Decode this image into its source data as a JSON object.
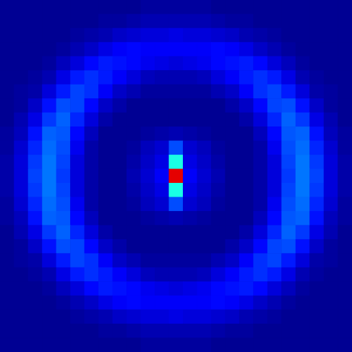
{
  "chart_data": {
    "type": "heatmap",
    "tick_labels": false,
    "zlim": [
      0,
      100
    ],
    "cells": [
      [
        2,
        2,
        2,
        2,
        2,
        2,
        2,
        2,
        2,
        2,
        3,
        3,
        3,
        3,
        3,
        2,
        2,
        2,
        2,
        2,
        2,
        2,
        2,
        2,
        2
      ],
      [
        2,
        2,
        2,
        2,
        2,
        2,
        2,
        3,
        3,
        4,
        5,
        5,
        5,
        5,
        5,
        4,
        3,
        3,
        2,
        2,
        2,
        2,
        2,
        2,
        2
      ],
      [
        2,
        2,
        2,
        2,
        2,
        3,
        4,
        5,
        7,
        8,
        9,
        9,
        10,
        9,
        9,
        8,
        7,
        5,
        4,
        3,
        2,
        2,
        2,
        2,
        2
      ],
      [
        2,
        2,
        2,
        2,
        3,
        5,
        7,
        10,
        12,
        13,
        12,
        12,
        12,
        12,
        12,
        13,
        12,
        10,
        7,
        5,
        3,
        2,
        2,
        2,
        2
      ],
      [
        2,
        2,
        2,
        3,
        6,
        9,
        13,
        15,
        14,
        13,
        11,
        10,
        9,
        10,
        11,
        13,
        14,
        15,
        13,
        9,
        6,
        3,
        2,
        2,
        2
      ],
      [
        2,
        2,
        3,
        5,
        10,
        15,
        17,
        15,
        12,
        9,
        6,
        5,
        5,
        5,
        6,
        9,
        12,
        15,
        17,
        15,
        10,
        5,
        3,
        2,
        2
      ],
      [
        2,
        3,
        4,
        9,
        15,
        19,
        17,
        12,
        7,
        5,
        3,
        3,
        3,
        3,
        3,
        5,
        7,
        12,
        17,
        19,
        15,
        9,
        4,
        3,
        2
      ],
      [
        2,
        3,
        7,
        14,
        20,
        19,
        13,
        7,
        4,
        2,
        2,
        2,
        2,
        2,
        2,
        2,
        4,
        7,
        13,
        19,
        20,
        14,
        7,
        3,
        2
      ],
      [
        2,
        5,
        10,
        18,
        22,
        16,
        9,
        4,
        2,
        2,
        2,
        2,
        2,
        2,
        2,
        2,
        2,
        4,
        9,
        16,
        22,
        18,
        10,
        5,
        2
      ],
      [
        3,
        6,
        14,
        22,
        21,
        13,
        6,
        2,
        2,
        2,
        3,
        4,
        5,
        4,
        3,
        2,
        2,
        2,
        6,
        13,
        21,
        22,
        14,
        6,
        3
      ],
      [
        3,
        8,
        16,
        23,
        20,
        11,
        4,
        2,
        2,
        3,
        6,
        8,
        20,
        8,
        6,
        3,
        2,
        2,
        4,
        11,
        20,
        23,
        16,
        8,
        3
      ],
      [
        4,
        9,
        18,
        24,
        19,
        9,
        4,
        2,
        2,
        4,
        7,
        10,
        40,
        10,
        7,
        4,
        2,
        2,
        4,
        9,
        19,
        24,
        18,
        9,
        4
      ],
      [
        4,
        9,
        19,
        24,
        18,
        9,
        4,
        2,
        2,
        5,
        8,
        12,
        90,
        12,
        8,
        5,
        2,
        2,
        4,
        9,
        18,
        24,
        19,
        9,
        4
      ],
      [
        4,
        9,
        18,
        24,
        19,
        9,
        4,
        2,
        2,
        4,
        7,
        10,
        40,
        10,
        7,
        4,
        2,
        2,
        4,
        9,
        19,
        24,
        18,
        9,
        4
      ],
      [
        3,
        8,
        16,
        23,
        20,
        11,
        4,
        2,
        2,
        3,
        6,
        8,
        20,
        8,
        6,
        3,
        2,
        2,
        4,
        11,
        20,
        23,
        16,
        8,
        3
      ],
      [
        3,
        6,
        14,
        22,
        21,
        13,
        6,
        2,
        2,
        2,
        3,
        4,
        5,
        4,
        3,
        2,
        2,
        2,
        6,
        13,
        21,
        22,
        14,
        6,
        3
      ],
      [
        2,
        5,
        10,
        18,
        22,
        16,
        9,
        4,
        2,
        2,
        2,
        2,
        2,
        2,
        2,
        2,
        2,
        4,
        9,
        16,
        22,
        18,
        10,
        5,
        2
      ],
      [
        2,
        3,
        7,
        14,
        20,
        19,
        13,
        7,
        4,
        2,
        2,
        2,
        2,
        2,
        2,
        2,
        4,
        7,
        13,
        19,
        20,
        14,
        7,
        3,
        2
      ],
      [
        2,
        3,
        4,
        9,
        15,
        19,
        17,
        12,
        7,
        5,
        3,
        3,
        3,
        3,
        3,
        5,
        7,
        12,
        17,
        19,
        15,
        9,
        4,
        3,
        2
      ],
      [
        2,
        2,
        3,
        5,
        10,
        15,
        17,
        15,
        12,
        9,
        6,
        5,
        5,
        5,
        6,
        9,
        12,
        15,
        17,
        15,
        10,
        5,
        3,
        2,
        2
      ],
      [
        2,
        2,
        2,
        3,
        6,
        9,
        13,
        15,
        14,
        13,
        11,
        10,
        9,
        10,
        11,
        13,
        14,
        15,
        13,
        9,
        6,
        3,
        2,
        2,
        2
      ],
      [
        2,
        2,
        2,
        2,
        3,
        5,
        7,
        10,
        12,
        13,
        12,
        12,
        12,
        12,
        12,
        13,
        12,
        10,
        7,
        5,
        3,
        2,
        2,
        2,
        2
      ],
      [
        2,
        2,
        2,
        2,
        2,
        3,
        4,
        5,
        7,
        8,
        9,
        9,
        10,
        9,
        9,
        8,
        7,
        5,
        4,
        3,
        2,
        2,
        2,
        2,
        2
      ],
      [
        2,
        2,
        2,
        2,
        2,
        2,
        2,
        3,
        3,
        4,
        5,
        5,
        5,
        5,
        5,
        4,
        3,
        3,
        2,
        2,
        2,
        2,
        2,
        2,
        2
      ],
      [
        2,
        2,
        2,
        2,
        2,
        2,
        2,
        2,
        2,
        2,
        3,
        3,
        3,
        3,
        3,
        2,
        2,
        2,
        2,
        2,
        2,
        2,
        2,
        2,
        2
      ]
    ]
  }
}
